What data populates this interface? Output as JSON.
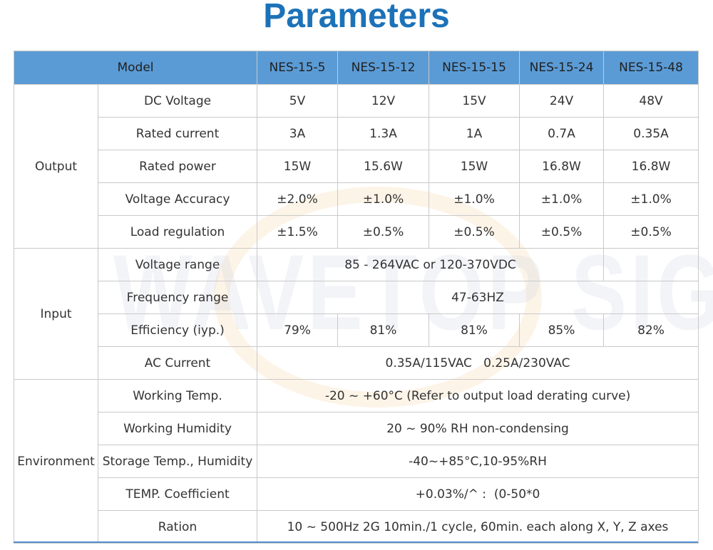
{
  "title": "Parameters",
  "watermark": "WAVETOP SIGN",
  "header": {
    "model_label": "Model",
    "models": [
      "NES-15-5",
      "NES-15-12",
      "NES-15-15",
      "NES-15-24",
      "NES-15-48"
    ]
  },
  "groups": {
    "output": "Output",
    "input": "Input",
    "environment": "Environment"
  },
  "output": {
    "dc_voltage": {
      "label": "DC Voltage",
      "values": [
        "5V",
        "12V",
        "15V",
        "24V",
        "48V"
      ]
    },
    "rated_current": {
      "label": "Rated current",
      "values": [
        "3A",
        "1.3A",
        "1A",
        "0.7A",
        "0.35A"
      ]
    },
    "rated_power": {
      "label": "Rated power",
      "values": [
        "15W",
        "15.6W",
        "15W",
        "16.8W",
        "16.8W"
      ]
    },
    "voltage_accuracy": {
      "label": "Voltage Accuracy",
      "values": [
        "±2.0%",
        "±1.0%",
        "±1.0%",
        "±1.0%",
        "±1.0%"
      ]
    },
    "load_regulation": {
      "label": "Load regulation",
      "values": [
        "±1.5%",
        "±0.5%",
        "±0.5%",
        "±0.5%",
        "±0.5%"
      ]
    }
  },
  "input": {
    "voltage_range": {
      "label": "Voltage range",
      "value": "85 - 264VAC or 120-370VDC"
    },
    "frequency_range": {
      "label": "Frequency range",
      "value": "47-63HZ"
    },
    "efficiency": {
      "label": "Efficiency (iyp.)",
      "values": [
        "79%",
        "81%",
        "81%",
        "85%",
        "82%"
      ]
    },
    "ac_current": {
      "label": "AC Current",
      "value": "0.35A/115VAC   0.25A/230VAC"
    }
  },
  "environment": {
    "working_temp": {
      "label": "Working Temp.",
      "value": "-20 ~ +60°C (Refer to output load derating curve)"
    },
    "working_humidity": {
      "label": "Working Humidity",
      "value": "20 ~ 90% RH non-condensing"
    },
    "storage": {
      "label": "Storage Temp., Humidity",
      "value": "-40~+85°C,10-95%RH"
    },
    "temp_coefficient": {
      "label": "TEMP. Coefficient",
      "value": "+0.03%/^ :  (0-50*0"
    },
    "ration": {
      "label": "Ration",
      "value": "10 ~ 500Hz 2G 10min./1 cycle, 60min. each along X, Y, Z axes"
    }
  }
}
